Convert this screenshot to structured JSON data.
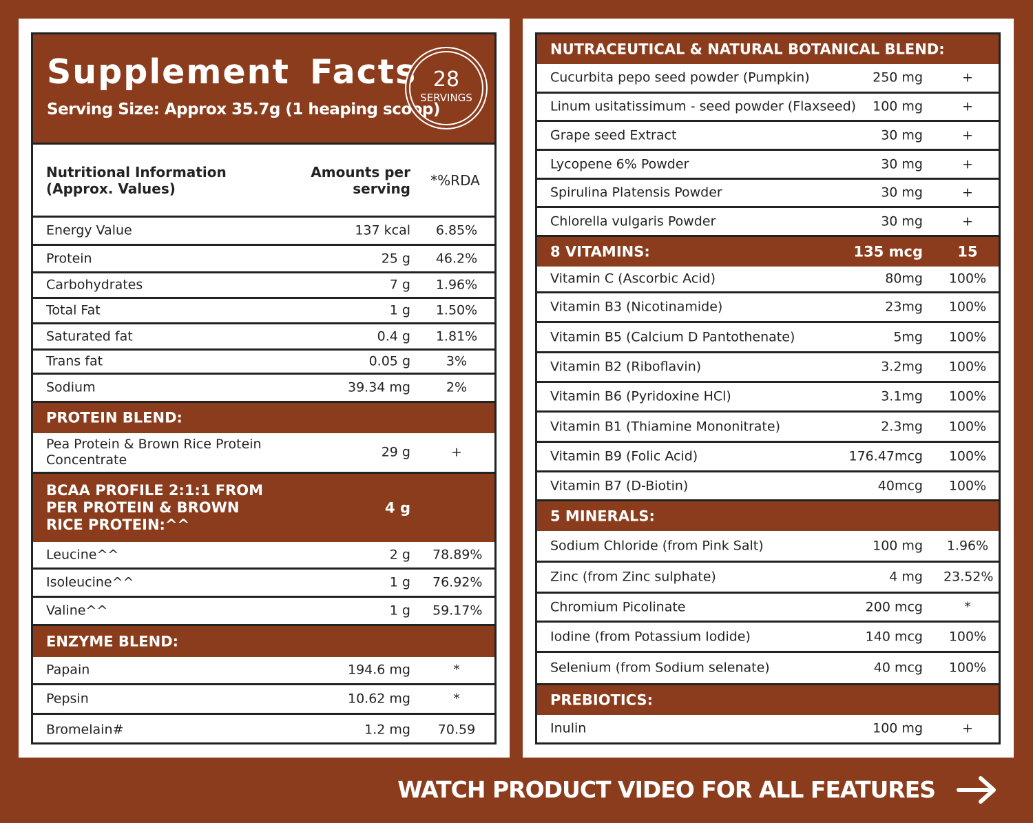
{
  "header": {
    "title": "Supplement Facts",
    "serving_size": "Serving Size: Approx 35.7g (1 heaping scoop)",
    "servings_count": "28",
    "servings_label": "SERVINGS"
  },
  "nutrition": {
    "columns": [
      "Nutritional Information\n(Approx. Values)",
      "Amounts per\nserving",
      "*%RDA"
    ],
    "rows": [
      [
        "Energy Value",
        "137 kcal",
        "6.85%"
      ],
      [
        "Protein",
        "25 g",
        "46.2%"
      ],
      [
        "Carbohydrates",
        "7 g",
        "1.96%"
      ],
      [
        "Total Fat",
        "1 g",
        "1.50%"
      ],
      [
        "Saturated fat",
        "0.4 g",
        "1.81%"
      ],
      [
        "Trans fat",
        "0.05 g",
        "3%"
      ],
      [
        "Sodium",
        "39.34 mg",
        "2%"
      ]
    ]
  },
  "left_sections": [
    {
      "title": "PROTEIN BLEND:",
      "rows": [
        [
          "Pea Protein & Brown Rice Protein\nConcentrate",
          "29 g",
          "+"
        ]
      ]
    },
    {
      "title": "BCAA PROFILE 2:1:1 FROM\nPER PROTEIN & BROWN\nRICE PROTEIN:^^",
      "amount": "4 g",
      "rows": [
        [
          "Leucine^^",
          "2 g",
          "78.89%"
        ],
        [
          "Isoleucine^^",
          "1 g",
          "76.92%"
        ],
        [
          "Valine^^",
          "1 g",
          "59.17%"
        ]
      ]
    },
    {
      "title": "ENZYME BLEND:",
      "rows": [
        [
          "Papain",
          "194.6 mg",
          "*"
        ],
        [
          "Pepsin",
          "10.62 mg",
          "*"
        ],
        [
          "Bromelain#",
          "1.2 mg",
          "70.59"
        ]
      ]
    }
  ],
  "right_sections": [
    {
      "title": "NUTRACEUTICAL & NATURAL BOTANICAL BLEND:",
      "rows": [
        [
          "Cucurbita pepo seed powder (Pumpkin)",
          "250 mg",
          "+"
        ],
        [
          "Linum usitatissimum - seed powder (Flaxseed)",
          "100 mg",
          "+"
        ],
        [
          "Grape seed Extract",
          "30 mg",
          "+"
        ],
        [
          "Lycopene 6% Powder",
          "30 mg",
          "+"
        ],
        [
          "Spirulina Platensis Powder",
          "30 mg",
          "+"
        ],
        [
          "Chlorella vulgaris Powder",
          "30 mg",
          "+"
        ]
      ]
    },
    {
      "title": "8 VITAMINS:",
      "amount": "135 mcg",
      "rda": "15",
      "rows": [
        [
          "Vitamin C (Ascorbic Acid)",
          "80mg",
          "100%"
        ],
        [
          "Vitamin B3 (Nicotinamide)",
          "23mg",
          "100%"
        ],
        [
          "Vitamin B5 (Calcium D Pantothenate)",
          "5mg",
          "100%"
        ],
        [
          "Vitamin B2 (Riboflavin)",
          "3.2mg",
          "100%"
        ],
        [
          "Vitamin B6 (Pyridoxine HCl)",
          "3.1mg",
          "100%"
        ],
        [
          "Vitamin B1 (Thiamine Mononitrate)",
          "2.3mg",
          "100%"
        ],
        [
          "Vitamin B9 (Folic Acid)",
          "176.47mcg",
          "100%"
        ],
        [
          "Vitamin B7 (D-Biotin)",
          "40mcg",
          "100%"
        ]
      ]
    },
    {
      "title": "5 MINERALS:",
      "rows": [
        [
          "Sodium Chloride (from Pink Salt)",
          "100 mg",
          "1.96%"
        ],
        [
          "Zinc (from Zinc sulphate)",
          "4 mg",
          "23.52%"
        ],
        [
          "Chromium Picolinate",
          "200 mcg",
          "*"
        ],
        [
          "Iodine (from Potassium Iodide)",
          "140 mcg",
          "100%"
        ],
        [
          "Selenium (from Sodium selenate)",
          "40 mcg",
          "100%"
        ]
      ]
    },
    {
      "title": "PREBIOTICS:",
      "rows": [
        [
          "Inulin",
          "100 mg",
          "+"
        ]
      ]
    }
  ],
  "footer": {
    "cta": "WATCH PRODUCT VIDEO FOR ALL FEATURES"
  }
}
